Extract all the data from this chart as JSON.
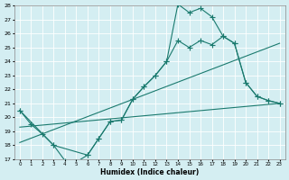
{
  "xlabel": "Humidex (Indice chaleur)",
  "bg_color": "#d4eef2",
  "grid_color": "#ffffff",
  "line_color": "#1a7a6e",
  "xlim": [
    -0.5,
    23.5
  ],
  "ylim": [
    17,
    28
  ],
  "xticks": [
    0,
    1,
    2,
    3,
    4,
    5,
    6,
    7,
    8,
    9,
    10,
    11,
    12,
    13,
    14,
    15,
    16,
    17,
    18,
    19,
    20,
    21,
    22,
    23
  ],
  "yticks": [
    17,
    18,
    19,
    20,
    21,
    22,
    23,
    24,
    25,
    26,
    27,
    28
  ],
  "line1_x": [
    0,
    1,
    2,
    3,
    4,
    5,
    6,
    7,
    8,
    9,
    10,
    11,
    12,
    13,
    14,
    15,
    16,
    17,
    18,
    19,
    20,
    21,
    22,
    23
  ],
  "line1_y": [
    20.5,
    19.5,
    18.8,
    18.0,
    16.9,
    16.8,
    17.3,
    18.5,
    19.7,
    19.8,
    21.3,
    22.2,
    23.0,
    24.0,
    28.1,
    27.5,
    27.8,
    27.2,
    25.8,
    25.3,
    22.5,
    21.5,
    21.2,
    21.0
  ],
  "line2_x": [
    0,
    3,
    6,
    7,
    8,
    9,
    10,
    11,
    12,
    13,
    14,
    15,
    16,
    17,
    18,
    19,
    20,
    21,
    22,
    23
  ],
  "line2_y": [
    20.5,
    18.0,
    17.3,
    18.5,
    19.7,
    19.8,
    21.3,
    22.2,
    23.0,
    24.0,
    25.5,
    25.0,
    25.5,
    25.2,
    25.8,
    25.3,
    22.5,
    21.5,
    21.2,
    21.0
  ],
  "line3_x": [
    0,
    23
  ],
  "line3_y": [
    19.3,
    21.0
  ],
  "line4_x": [
    0,
    23
  ],
  "line4_y": [
    18.2,
    25.3
  ]
}
